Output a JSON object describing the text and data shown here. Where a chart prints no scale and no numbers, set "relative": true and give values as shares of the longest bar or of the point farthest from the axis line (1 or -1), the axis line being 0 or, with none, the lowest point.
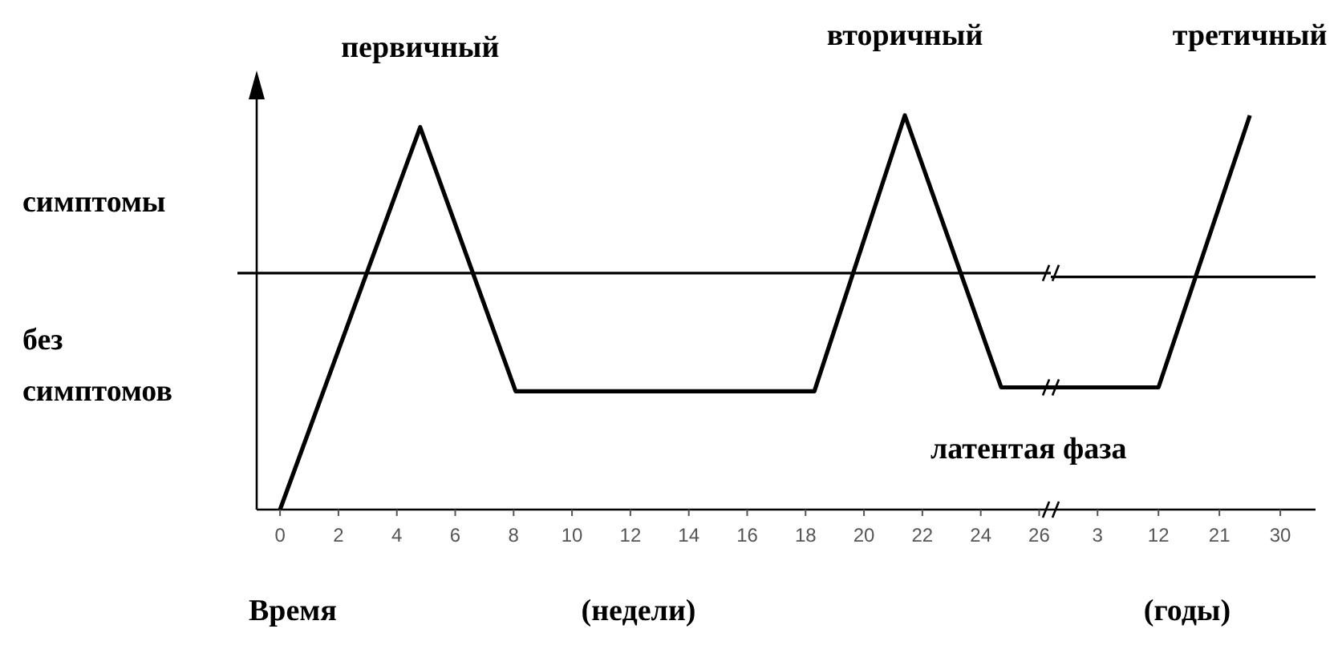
{
  "chart_data": [
    {
      "type": "line",
      "relative": true,
      "xlabel": "Время",
      "x": [
        0,
        4.8,
        8.07,
        18.3,
        21.4,
        24.7,
        26.4
      ],
      "series": [
        {
          "color": "#000000",
          "values": [
            0,
            0.97,
            0.3,
            0.3,
            1,
            0.31,
            0.31
          ]
        }
      ],
      "xlim": [
        -0.8,
        26.4
      ],
      "xticks": [
        0,
        2,
        4,
        6,
        8,
        10,
        12,
        14,
        16,
        18,
        20,
        22,
        24,
        26
      ],
      "ref_lines": [
        {
          "axis": "y",
          "value": 0.6,
          "color": "#000000"
        }
      ],
      "annotations": [
        {
          "text": "первичный",
          "x": 4.8,
          "y": 0.97
        },
        {
          "text": "вторичный",
          "x": 21.4,
          "y": 1
        },
        "симптомы",
        "без симптомов",
        "латентая фаза",
        "(недели)"
      ]
    },
    {
      "type": "line",
      "relative": true,
      "x": [
        -3.9,
        12,
        25.5
      ],
      "series": [
        {
          "color": "#000000",
          "values": [
            0.31,
            0.31,
            1
          ]
        }
      ],
      "xlim": [
        -3.9,
        35.2
      ],
      "xticks": [
        3,
        12,
        21,
        30
      ],
      "ref_lines": [
        {
          "axis": "y",
          "value": 0.59,
          "color": "#000000"
        }
      ],
      "annotations": [
        {
          "text": "третичный",
          "x": 25.5,
          "y": 1
        },
        "(годы)"
      ]
    }
  ]
}
